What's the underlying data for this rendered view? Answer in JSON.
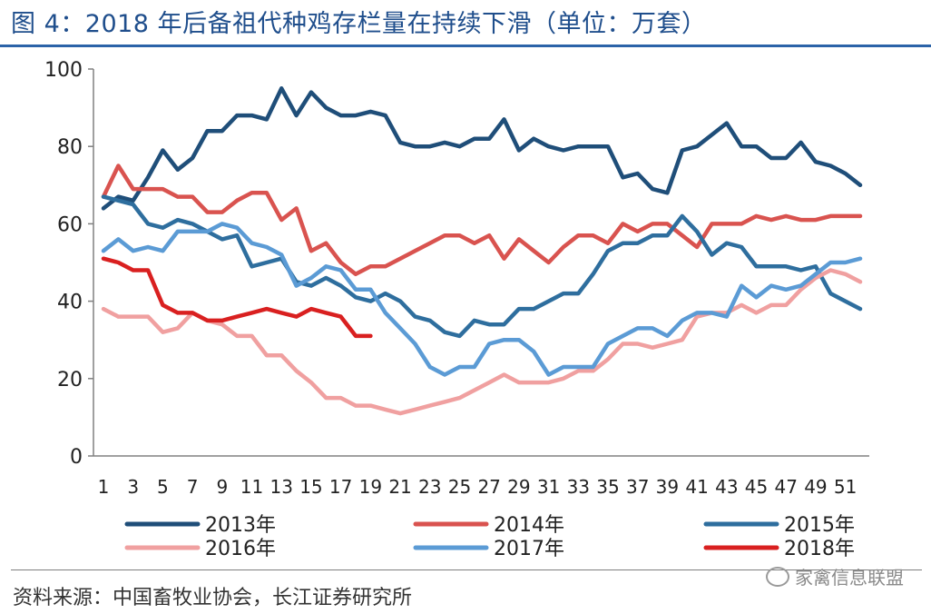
{
  "title": "图 4：2018 年后备祖代种鸡存栏量在持续下滑（单位：万套）",
  "source_note": "资料来源：中国畜牧业协会，长江证券研究所",
  "watermark": "家禽信息联盟",
  "chart_data": {
    "type": "line",
    "title": "图 4：2018 年后备祖代种鸡存栏量在持续下滑（单位：万套）",
    "xlabel": "",
    "ylabel": "",
    "ylim": [
      0,
      100
    ],
    "yticks": [
      0,
      20,
      40,
      60,
      80,
      100
    ],
    "xlim": [
      1,
      52
    ],
    "xtick_labels": [
      "1",
      "3",
      "5",
      "7",
      "9",
      "11",
      "13",
      "15",
      "17",
      "19",
      "21",
      "23",
      "25",
      "27",
      "29",
      "31",
      "33",
      "35",
      "37",
      "39",
      "41",
      "43",
      "45",
      "47",
      "49",
      "51"
    ],
    "grid": false,
    "legend_position": "bottom",
    "series": [
      {
        "name": "2013年",
        "color": "#1f4e79",
        "values": [
          64,
          67,
          66,
          72,
          79,
          74,
          77,
          84,
          84,
          88,
          88,
          87,
          95,
          88,
          94,
          90,
          88,
          88,
          89,
          88,
          81,
          80,
          80,
          81,
          80,
          82,
          82,
          87,
          79,
          82,
          80,
          79,
          80,
          80,
          80,
          72,
          73,
          69,
          68,
          79,
          80,
          83,
          86,
          80,
          80,
          77,
          77,
          81,
          76,
          75,
          73,
          70
        ]
      },
      {
        "name": "2014年",
        "color": "#d9534f",
        "values": [
          67,
          75,
          69,
          69,
          69,
          67,
          67,
          63,
          63,
          66,
          68,
          68,
          61,
          64,
          53,
          55,
          50,
          47,
          49,
          49,
          51,
          53,
          55,
          57,
          57,
          55,
          57,
          51,
          56,
          53,
          50,
          54,
          57,
          57,
          55,
          60,
          58,
          60,
          60,
          57,
          54,
          60,
          60,
          60,
          62,
          61,
          62,
          61,
          61,
          62,
          62,
          62
        ]
      },
      {
        "name": "2015年",
        "color": "#2e6e9e",
        "values": [
          67,
          66,
          65,
          60,
          59,
          61,
          60,
          58,
          56,
          57,
          49,
          50,
          51,
          45,
          44,
          46,
          44,
          41,
          40,
          42,
          40,
          36,
          35,
          32,
          31,
          35,
          34,
          34,
          38,
          38,
          40,
          42,
          42,
          47,
          53,
          55,
          55,
          57,
          57,
          62,
          58,
          52,
          55,
          54,
          49,
          49,
          49,
          48,
          49,
          42,
          40,
          38
        ]
      },
      {
        "name": "2016年",
        "color": "#f0a0a0",
        "values": [
          38,
          36,
          36,
          36,
          32,
          33,
          37,
          35,
          34,
          31,
          31,
          26,
          26,
          22,
          19,
          15,
          15,
          13,
          13,
          12,
          11,
          12,
          13,
          14,
          15,
          17,
          19,
          21,
          19,
          19,
          19,
          20,
          22,
          22,
          25,
          29,
          29,
          28,
          29,
          30,
          36,
          37,
          37,
          39,
          37,
          39,
          39,
          43,
          46,
          48,
          47,
          45
        ]
      },
      {
        "name": "2017年",
        "color": "#5b9bd5",
        "values": [
          53,
          56,
          53,
          54,
          53,
          58,
          58,
          58,
          60,
          59,
          55,
          54,
          52,
          44,
          46,
          49,
          48,
          43,
          43,
          37,
          33,
          29,
          23,
          21,
          23,
          23,
          29,
          30,
          30,
          27,
          21,
          23,
          23,
          23,
          29,
          31,
          33,
          33,
          31,
          35,
          37,
          37,
          36,
          44,
          41,
          44,
          43,
          44,
          47,
          50,
          50,
          51
        ]
      },
      {
        "name": "2018年",
        "color": "#d92020",
        "values": [
          51,
          50,
          48,
          48,
          39,
          37,
          37,
          35,
          35,
          36,
          37,
          38,
          37,
          36,
          38,
          37,
          36,
          31,
          31
        ]
      }
    ]
  }
}
